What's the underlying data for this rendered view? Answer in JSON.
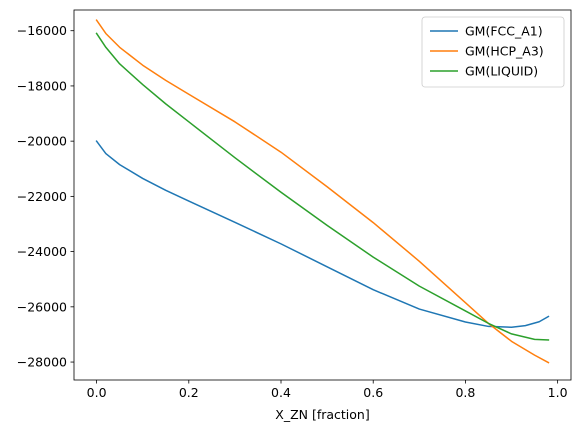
{
  "chart_data": {
    "type": "line",
    "xlabel": "X_ZN [fraction]",
    "ylabel": "",
    "xlim": [
      -0.049,
      1.029
    ],
    "ylim": [
      -28650,
      -15250
    ],
    "x_ticks": [
      0.0,
      0.2,
      0.4,
      0.6,
      0.8,
      1.0
    ],
    "x_tick_labels": [
      "0.0",
      "0.2",
      "0.4",
      "0.6",
      "0.8",
      "1.0"
    ],
    "y_ticks": [
      -28000,
      -26000,
      -24000,
      -22000,
      -20000,
      -18000,
      -16000
    ],
    "y_tick_labels": [
      "−28000",
      "−26000",
      "−24000",
      "−22000",
      "−20000",
      "−18000",
      "−16000"
    ],
    "legend_position": "top-right",
    "series": [
      {
        "name": "GM(FCC_A1)",
        "color": "#1f77b4",
        "x": [
          0.0,
          0.02,
          0.05,
          0.1,
          0.15,
          0.2,
          0.3,
          0.4,
          0.5,
          0.6,
          0.7,
          0.8,
          0.85,
          0.9,
          0.93,
          0.96,
          0.98
        ],
        "y": [
          -20000,
          -20450,
          -20850,
          -21350,
          -21780,
          -22170,
          -22940,
          -23720,
          -24550,
          -25380,
          -26080,
          -26550,
          -26710,
          -26740,
          -26680,
          -26540,
          -26350
        ]
      },
      {
        "name": "GM(HCP_A3)",
        "color": "#ff7f0e",
        "x": [
          0.0,
          0.02,
          0.05,
          0.1,
          0.15,
          0.2,
          0.3,
          0.4,
          0.5,
          0.6,
          0.7,
          0.8,
          0.85,
          0.9,
          0.95,
          0.98
        ],
        "y": [
          -15620,
          -16100,
          -16600,
          -17250,
          -17800,
          -18300,
          -19300,
          -20400,
          -21650,
          -22950,
          -24350,
          -25850,
          -26600,
          -27250,
          -27750,
          -28020
        ]
      },
      {
        "name": "GM(LIQUID)",
        "color": "#2ca02c",
        "x": [
          0.0,
          0.02,
          0.05,
          0.1,
          0.15,
          0.2,
          0.3,
          0.4,
          0.5,
          0.6,
          0.7,
          0.8,
          0.85,
          0.9,
          0.95,
          0.98
        ],
        "y": [
          -16100,
          -16600,
          -17200,
          -17950,
          -18650,
          -19300,
          -20600,
          -21850,
          -23050,
          -24200,
          -25250,
          -26150,
          -26600,
          -26980,
          -27180,
          -27200
        ]
      }
    ]
  }
}
